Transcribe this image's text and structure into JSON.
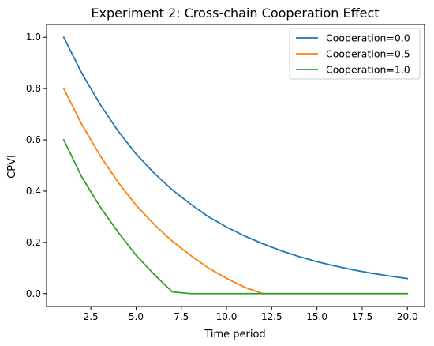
{
  "chart_data": {
    "type": "line",
    "title": "Experiment 2: Cross-chain Cooperation Effect",
    "xlabel": "Time period",
    "ylabel": "CPVI",
    "xlim": [
      0.05,
      20.95
    ],
    "ylim": [
      -0.05,
      1.05
    ],
    "xticks": [
      2.5,
      5.0,
      7.5,
      10.0,
      12.5,
      15.0,
      17.5,
      20.0
    ],
    "xtick_labels": [
      "2.5",
      "5.0",
      "7.5",
      "10.0",
      "12.5",
      "15.0",
      "17.5",
      "20.0"
    ],
    "yticks": [
      0.0,
      0.2,
      0.4,
      0.6,
      0.8,
      1.0
    ],
    "ytick_labels": [
      "0.0",
      "0.2",
      "0.4",
      "0.6",
      "0.8",
      "1.0"
    ],
    "grid": false,
    "legend_position": "top-right",
    "x": [
      1,
      2,
      3,
      4,
      5,
      6,
      7,
      8,
      9,
      10,
      11,
      12,
      13,
      14,
      15,
      16,
      17,
      18,
      19,
      20
    ],
    "series": [
      {
        "name": "Cooperation=0.0",
        "color": "#1f77b4",
        "values": [
          1.0,
          0.86,
          0.74,
          0.635,
          0.545,
          0.47,
          0.405,
          0.35,
          0.3,
          0.26,
          0.225,
          0.195,
          0.168,
          0.145,
          0.125,
          0.108,
          0.093,
          0.08,
          0.069,
          0.059
        ]
      },
      {
        "name": "Cooperation=0.5",
        "color": "#ff7f0e",
        "values": [
          0.8,
          0.66,
          0.54,
          0.435,
          0.345,
          0.27,
          0.205,
          0.15,
          0.1,
          0.06,
          0.025,
          0.0,
          0.0,
          0.0,
          0.0,
          0.0,
          0.0,
          0.0,
          0.0,
          0.0
        ]
      },
      {
        "name": "Cooperation=1.0",
        "color": "#2ca02c",
        "values": [
          0.6,
          0.455,
          0.34,
          0.24,
          0.15,
          0.075,
          0.007,
          0.0,
          0.0,
          0.0,
          0.0,
          0.0,
          0.0,
          0.0,
          0.0,
          0.0,
          0.0,
          0.0,
          0.0,
          0.0
        ]
      }
    ]
  }
}
